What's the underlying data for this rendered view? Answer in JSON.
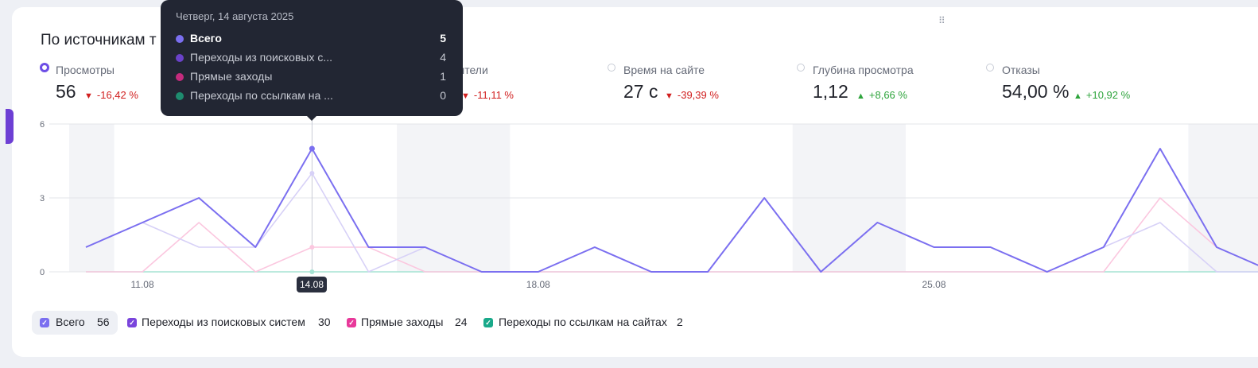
{
  "widget": {
    "title": "По источникам т",
    "colors": {
      "accent": "#6d4ee6",
      "down": "#d11f1f",
      "up": "#2ea43c"
    }
  },
  "metrics": [
    {
      "label": "Просмотры",
      "value": "56",
      "delta": "-16,42 %",
      "direction": "down",
      "active": true
    },
    {
      "label": "тители",
      "value": "",
      "delta": "-11,11 %",
      "direction": "down",
      "active": false
    },
    {
      "label": "Время на сайте",
      "value": "27 с",
      "delta": "-39,39 %",
      "direction": "down",
      "active": false
    },
    {
      "label": "Глубина просмотра",
      "value": "1,12",
      "delta": "+8,66 %",
      "direction": "up",
      "active": false
    },
    {
      "label": "Отказы",
      "value": "54,00 %",
      "delta": "+10,92 %",
      "direction": "up",
      "active": false
    }
  ],
  "tooltip": {
    "date": "Четверг, 14 августа 2025",
    "rows": [
      {
        "label": "Всего",
        "value": "5",
        "color": "#7b6ff0"
      },
      {
        "label": "Переходы из поисковых с...",
        "value": "4",
        "color": "#6a42c9"
      },
      {
        "label": "Прямые заходы",
        "value": "1",
        "color": "#c42b7d"
      },
      {
        "label": "Переходы по ссылкам на ...",
        "value": "0",
        "color": "#1e8c6f"
      }
    ]
  },
  "x_badge": "14.08",
  "legend": [
    {
      "label": "Всего",
      "count": "56",
      "color": "#7b6ff0"
    },
    {
      "label": "Переходы из поисковых систем",
      "count": "30",
      "color": "#7a45dc"
    },
    {
      "label": "Прямые заходы",
      "count": "24",
      "color": "#e8399a"
    },
    {
      "label": "Переходы по ссылкам на сайтах",
      "count": "2",
      "color": "#19a98a"
    }
  ],
  "chart_data": {
    "type": "line",
    "x": [
      "10.08",
      "11.08",
      "12.08",
      "13.08",
      "14.08",
      "15.08",
      "16.08",
      "17.08",
      "18.08",
      "19.08",
      "20.08",
      "21.08",
      "22.08",
      "23.08",
      "24.08",
      "25.08",
      "26.08",
      "27.08",
      "28.08",
      "29.08",
      "30.08",
      "31.08"
    ],
    "xticks": [
      "11.08",
      "18.08",
      "25.08"
    ],
    "yticks": [
      "0",
      "3",
      "6"
    ],
    "ylim": [
      0,
      6
    ],
    "series": [
      {
        "name": "Всего",
        "color": "#7b6ff0",
        "values": [
          1,
          2,
          3,
          1,
          5,
          1,
          1,
          0,
          0,
          1,
          0,
          0,
          3,
          0,
          2,
          1,
          1,
          0,
          1,
          5,
          1,
          0
        ]
      },
      {
        "name": "Переходы из поисковых систем",
        "color": "#d7d1f7",
        "values": [
          1,
          2,
          1,
          1,
          4,
          0,
          1,
          0,
          0,
          1,
          0,
          0,
          3,
          0,
          2,
          1,
          1,
          0,
          1,
          2,
          0,
          0
        ]
      },
      {
        "name": "Прямые заходы",
        "color": "#fbc7df",
        "values": [
          0,
          0,
          2,
          0,
          1,
          1,
          0,
          0,
          0,
          0,
          0,
          0,
          0,
          0,
          0,
          0,
          0,
          0,
          0,
          3,
          1,
          0
        ]
      },
      {
        "name": "Переходы по ссылкам на сайтах",
        "color": "#a5e3d4",
        "values": [
          0,
          0,
          0,
          0,
          0,
          0,
          0,
          0,
          0,
          0,
          0,
          0,
          0,
          0,
          0,
          0,
          0,
          0,
          0,
          0,
          0,
          0
        ]
      }
    ]
  }
}
